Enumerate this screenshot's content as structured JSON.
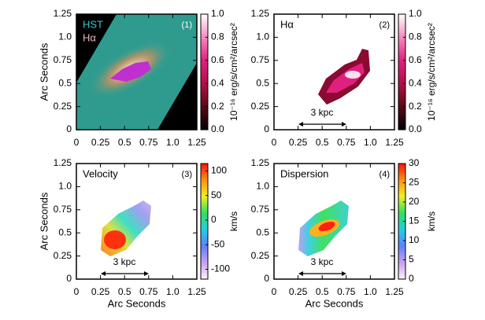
{
  "chart_data": [
    {
      "type": "image",
      "ylabel": "Arc Seconds",
      "xlim": [
        0,
        1.25
      ],
      "xticks": [
        0,
        0.25,
        0.5,
        0.75,
        {
          "value": 1,
          "label": "1.0"
        },
        1.25
      ],
      "ylim": [
        0,
        1.25
      ],
      "yticks": [
        0,
        0.25,
        0.5,
        0.75,
        {
          "value": 1,
          "label": "1.0"
        },
        1.25
      ],
      "colorbar": {
        "lim": [
          0,
          1
        ],
        "ticks": [
          {
            "value": 0,
            "label": "0.0"
          },
          0.2,
          0.4,
          0.6,
          0.8,
          {
            "value": 1,
            "label": "1.0"
          }
        ],
        "label": "10⁻¹⁶ erg/s/cm²/arcsec²",
        "colors": [
          "#000000",
          "#5a0a14",
          "#b0104a",
          "#e0207f",
          "#f58ac0",
          "#ffffff"
        ]
      },
      "annotations": [
        {
          "text": "HST",
          "color": "#33cccc"
        },
        {
          "text": "Hα",
          "color": "#e8b8c0"
        },
        {
          "text": "(1)",
          "color": "#ffffff"
        }
      ]
    },
    {
      "type": "image",
      "xlim": [
        0,
        1.25
      ],
      "xticks": [
        0,
        0.25,
        0.5,
        0.75,
        {
          "value": 1,
          "label": "1.0"
        },
        1.25
      ],
      "ylim": [
        0,
        1.25
      ],
      "yticks": [
        0,
        0.25,
        0.5,
        0.75,
        {
          "value": 1,
          "label": "1.0"
        },
        1.25
      ],
      "colorbar": {
        "lim": [
          0,
          1
        ],
        "ticks": [
          {
            "value": 0,
            "label": "0.0"
          },
          0.2,
          0.4,
          0.6,
          0.8,
          {
            "value": 1,
            "label": "1.0"
          }
        ],
        "label": "10⁻¹⁶ erg/s/cm²/arcsec²",
        "colors": [
          "#000000",
          "#5a0a14",
          "#b0104a",
          "#e0207f",
          "#f58ac0",
          "#ffffff"
        ]
      },
      "annotations": [
        {
          "text": "Hα",
          "color": "#000000"
        },
        {
          "text": "(2)",
          "color": "#000000"
        },
        {
          "text": "3 kpc",
          "color": "#000000"
        }
      ]
    },
    {
      "type": "image",
      "ylabel": "Arc Seconds",
      "xlabel": "Arc Seconds",
      "xlim": [
        0,
        1.25
      ],
      "xticks": [
        0,
        0.25,
        0.5,
        0.75,
        {
          "value": 1,
          "label": "1.0"
        },
        1.25
      ],
      "ylim": [
        0,
        1.25
      ],
      "yticks": [
        0,
        0.25,
        0.5,
        0.75,
        {
          "value": 1,
          "label": "1.0"
        },
        1.25
      ],
      "colorbar": {
        "lim": [
          -120,
          115
        ],
        "ticks": [
          -100,
          -50,
          0,
          50,
          100
        ],
        "label": "km/s",
        "colors": [
          "#fff0f8",
          "#c8a0f0",
          "#6080ff",
          "#20d0e0",
          "#30e060",
          "#f0f020",
          "#ff9010",
          "#ff1010"
        ]
      },
      "annotations": [
        {
          "text": "Velocity",
          "color": "#000000"
        },
        {
          "text": "(3)",
          "color": "#000000"
        },
        {
          "text": "3 kpc",
          "color": "#000000"
        }
      ]
    },
    {
      "type": "image",
      "xlabel": "Arc Seconds",
      "xlim": [
        0,
        1.25
      ],
      "xticks": [
        0,
        0.25,
        0.5,
        0.75,
        {
          "value": 1,
          "label": "1.0"
        },
        1.25
      ],
      "ylim": [
        0,
        1.25
      ],
      "yticks": [
        0,
        0.25,
        0.5,
        0.75,
        {
          "value": 1,
          "label": "1.0"
        },
        1.25
      ],
      "colorbar": {
        "lim": [
          0,
          30
        ],
        "ticks": [
          0,
          5,
          10,
          15,
          20,
          25,
          30
        ],
        "label": "km/s",
        "colors": [
          "#fff0f8",
          "#c8a0f0",
          "#6080ff",
          "#20d0e0",
          "#30e060",
          "#f0f020",
          "#ff9010",
          "#ff1010"
        ]
      },
      "annotations": [
        {
          "text": "Dispersion",
          "color": "#000000"
        },
        {
          "text": "(4)",
          "color": "#000000"
        },
        {
          "text": "3 kpc",
          "color": "#000000"
        }
      ]
    }
  ]
}
